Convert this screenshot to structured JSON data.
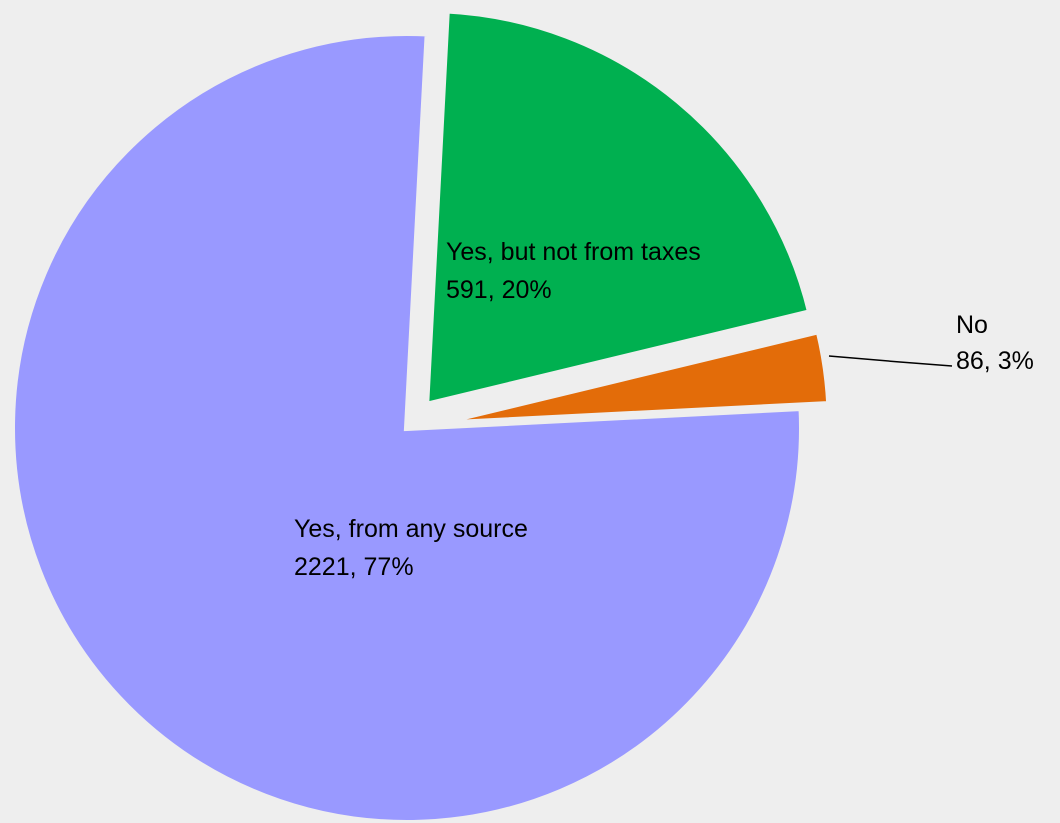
{
  "chart_data": {
    "type": "pie",
    "title": "",
    "slices": [
      {
        "label": "Yes, but not from taxes",
        "value": 591,
        "percent": "20%",
        "display": "591, 20%",
        "color": "#00b050"
      },
      {
        "label": "No",
        "value": 86,
        "percent": "3%",
        "display": "86, 3%",
        "color": "#e36c09"
      },
      {
        "label": "Yes, from any source",
        "value": 2221,
        "percent": "77%",
        "display": "2221, 77%",
        "color": "#9999ff"
      }
    ],
    "exploded": true,
    "legend": "none"
  }
}
